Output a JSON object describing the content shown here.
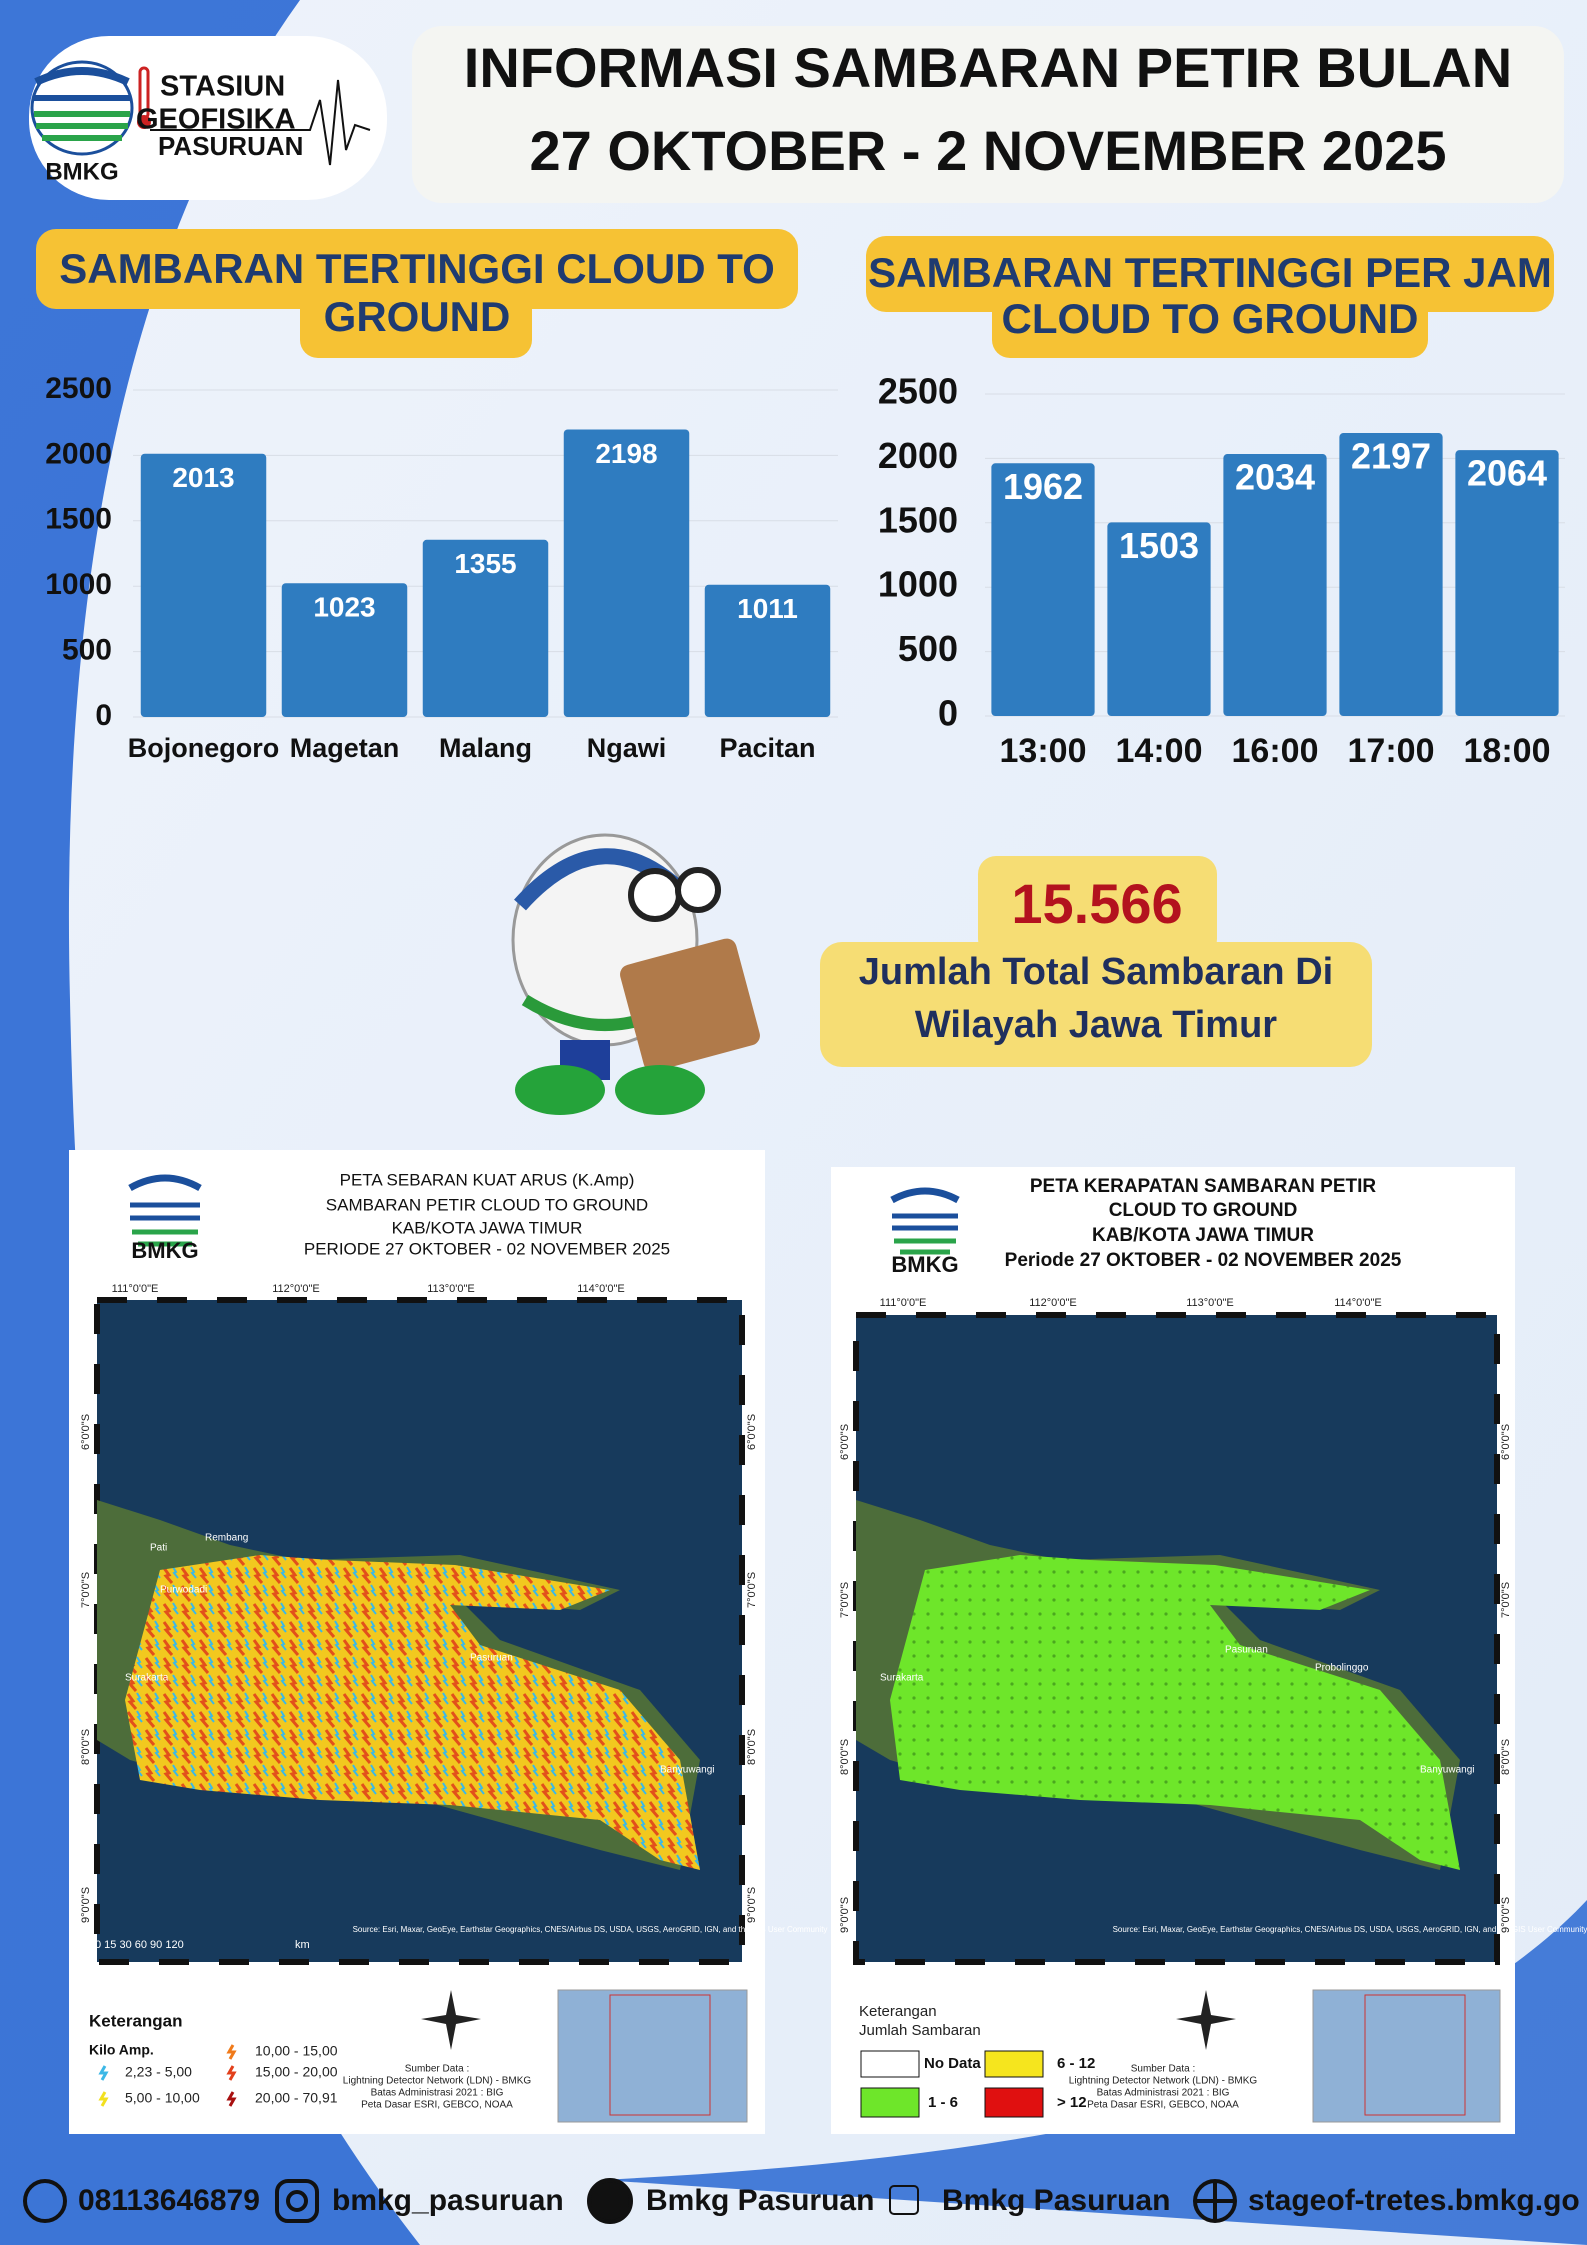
{
  "header": {
    "logo_lines": [
      "STASIUN",
      "GEOFISIKA",
      "PASURUAN"
    ],
    "logo_brand": "BMKG",
    "title_lines": [
      "INFORMASI SAMBARAN PETIR BULAN",
      "27 OKTOBER - 2 NOVEMBER 2025"
    ]
  },
  "chart_data": [
    {
      "type": "bar",
      "title": [
        "SAMBARAN TERTINGGI  CLOUD TO",
        "GROUND"
      ],
      "categories": [
        "Bojonegoro",
        "Magetan",
        "Malang",
        "Ngawi",
        "Pacitan"
      ],
      "values": [
        2013,
        1023,
        1355,
        2198,
        1011
      ],
      "color": "#2f7cc0",
      "ylim": [
        0,
        2500
      ],
      "yticks": [
        0,
        500,
        1000,
        1500,
        2000,
        2500
      ],
      "grid": true
    },
    {
      "type": "bar",
      "title": [
        "SAMBARAN TERTINGGI PER JAM",
        "CLOUD TO GROUND"
      ],
      "categories": [
        "13:00",
        "14:00",
        "16:00",
        "17:00",
        "18:00"
      ],
      "values": [
        1962,
        1503,
        2034,
        2197,
        2064
      ],
      "color": "#2f7cc0",
      "ylim": [
        0,
        2500
      ],
      "yticks": [
        0,
        500,
        1000,
        1500,
        2000,
        2500
      ],
      "grid": true
    }
  ],
  "total": {
    "value": "15.566",
    "label_lines": [
      "Jumlah Total Sambaran Di",
      "Wilayah Jawa Timur"
    ]
  },
  "map_left": {
    "brand": "BMKG",
    "title_lines": [
      "PETA SEBARAN KUAT ARUS (K.Amp)",
      "SAMBARAN PETIR CLOUD TO GROUND",
      "KAB/KOTA JAWA TIMUR",
      "PERIODE 27 OKTOBER - 02 NOVEMBER 2025"
    ],
    "lon_labels": [
      "111°0'0\"E",
      "112°0'0\"E",
      "113°0'0\"E",
      "114°0'0\"E"
    ],
    "lat_labels": [
      "6°0'0\"S",
      "7°0'0\"S",
      "8°0'0\"S",
      "9°0'0\"S"
    ],
    "places": [
      "Rembang",
      "Pati",
      "Purwodadi",
      "Surakarta",
      "Pasuruan",
      "Banyuwangi"
    ],
    "scale": "0  15 30     60      90     120",
    "scale_unit": "km",
    "attribution": "Source: Esri, Maxar, GeoEye, Earthstar Geographics, CNES/Airbus DS, USDA, USGS, AeroGRID, IGN, and the GIS User Community",
    "legend_title": "Keterangan",
    "legend_subtitle": "Kilo Amp.",
    "legend_items": [
      "2,23 - 5,00",
      "5,00 - 10,00",
      "10,00 - 15,00",
      "15,00 - 20,00",
      "20,00 - 70,91"
    ],
    "source_lines": [
      "Sumber Data :",
      "Lightning Detector Network (LDN) - BMKG",
      "Batas Administrasi 2021 : BIG",
      "Peta Dasar ESRI, GEBCO, NOAA"
    ]
  },
  "map_right": {
    "brand": "BMKG",
    "title_lines": [
      "PETA KERAPATAN SAMBARAN PETIR",
      "CLOUD TO GROUND",
      "KAB/KOTA JAWA TIMUR",
      "Periode 27 OKTOBER - 02 NOVEMBER 2025"
    ],
    "lon_labels": [
      "111°0'0\"E",
      "112°0'0\"E",
      "113°0'0\"E",
      "114°0'0\"E"
    ],
    "lat_labels": [
      "6°0'0\"S",
      "7°0'0\"S",
      "8°0'0\"S",
      "9°0'0\"S"
    ],
    "places": [
      "Surakarta",
      "Pasuruan",
      "Probolinggo",
      "Banyuwangi"
    ],
    "attribution": "Source: Esri, Maxar, GeoEye, Earthstar Geographics, CNES/Airbus DS, USDA, USGS, AeroGRID, IGN, and the GIS User Community",
    "legend_title": "Keterangan",
    "legend_subtitle": "Jumlah Sambaran",
    "legend_items": [
      "No Data",
      "1 - 6",
      "6 - 12",
      "> 12"
    ],
    "source_lines": [
      "Sumber Data :",
      "Lightning Detector Network (LDN) - BMKG",
      "Batas Administrasi 2021 : BIG",
      "Peta Dasar ESRI, GEBCO, NOAA"
    ]
  },
  "footer": {
    "items": [
      "08113646879",
      "bmkg_pasuruan",
      "Bmkg Pasuruan",
      "Bmkg Pasuruan",
      "stageof-tretes.bmkg.go"
    ]
  }
}
